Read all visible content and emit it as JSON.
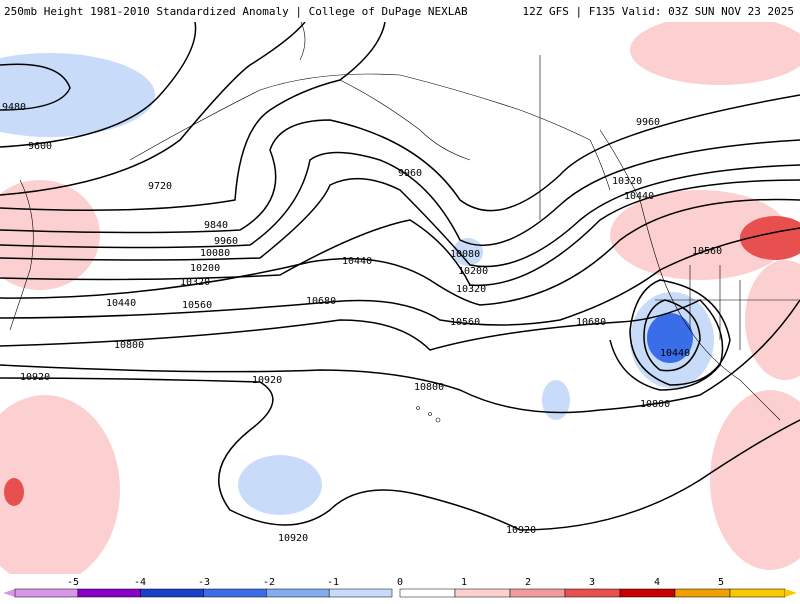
{
  "header": {
    "title_left": "250mb Height 1981-2010 Standardized Anomaly | College of DuPage NEXLAB",
    "title_right": "12Z GFS | F135 Valid: 03Z SUN NOV 23 2025"
  },
  "map": {
    "contour_labels": [
      "9480",
      "9600",
      "9720",
      "9840",
      "9960",
      "10080",
      "10200",
      "10320",
      "10440",
      "10560",
      "10680",
      "10800",
      "10920"
    ],
    "contour_color": "#000000",
    "coastline_color": "#000000"
  },
  "colorbar": {
    "tick_labels": [
      "-5",
      "-4",
      "-3",
      "-2",
      "-1",
      "0",
      "1",
      "2",
      "3",
      "4",
      "5"
    ],
    "negative_colors": [
      "#d896e8",
      "#8a00c8",
      "#1a3fc8",
      "#3a6ee8",
      "#86acf0",
      "#c8dcfa"
    ],
    "positive_colors": [
      "#ffffff",
      "#fcd0d0",
      "#f49a9a",
      "#e85050",
      "#c80000",
      "#f0a000",
      "#f8c800"
    ]
  }
}
